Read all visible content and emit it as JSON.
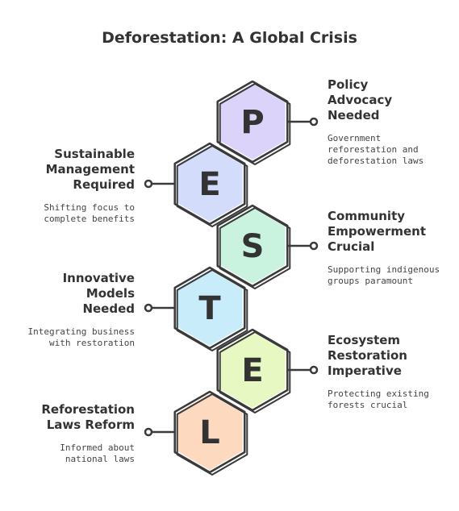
{
  "title": "Deforestation: A Global Crisis",
  "colors": {
    "p": "#dcd3fb",
    "e1": "#d3dcfb",
    "s": "#c9f3de",
    "t": "#c8ecf9",
    "e2": "#e8f8c2",
    "l": "#fcd9bf",
    "stroke": "#3a3a3a"
  },
  "hexagons": [
    {
      "letter": "P",
      "color_key": "p"
    },
    {
      "letter": "E",
      "color_key": "e1"
    },
    {
      "letter": "S",
      "color_key": "s"
    },
    {
      "letter": "T",
      "color_key": "t"
    },
    {
      "letter": "E",
      "color_key": "e2"
    },
    {
      "letter": "L",
      "color_key": "l"
    }
  ],
  "items": [
    {
      "heading": "Policy\nAdvocacy\nNeeded",
      "desc": "Government\nreforestation and\ndeforestation laws"
    },
    {
      "heading": "Sustainable\nManagement\nRequired",
      "desc": "Shifting focus to\ncomplete benefits"
    },
    {
      "heading": "Community\nEmpowerment\nCrucial",
      "desc": "Supporting indigenous\ngroups paramount"
    },
    {
      "heading": "Innovative\nModels\nNeeded",
      "desc": "Integrating business\nwith restoration"
    },
    {
      "heading": "Ecosystem\nRestoration\nImperative",
      "desc": "Protecting existing\nforests crucial"
    },
    {
      "heading": "Reforestation\nLaws Reform",
      "desc": "Informed about\nnational laws"
    }
  ]
}
